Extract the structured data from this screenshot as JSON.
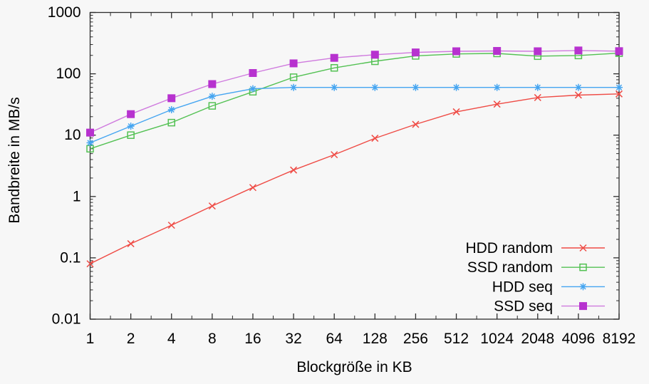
{
  "page": {
    "background": "#f7f7f7",
    "axis_color": "#2d2d2d",
    "text_color": "#000000"
  },
  "chart_data": {
    "type": "line",
    "title": "",
    "xlabel": "Blockgröße in KB",
    "ylabel": "Bandbreite in MB/s",
    "x_scale": "log2",
    "y_scale": "log10",
    "xlim": [
      1,
      8192
    ],
    "ylim": [
      0.01,
      1000
    ],
    "grid": false,
    "legend_position": "inside-bottom-right",
    "categories": [
      1,
      2,
      4,
      8,
      16,
      32,
      64,
      128,
      256,
      512,
      1024,
      2048,
      4096,
      8192
    ],
    "x_tick_labels": [
      "1",
      "2",
      "4",
      "8",
      "16",
      "32",
      "64",
      "128",
      "256",
      "512",
      "1024",
      "2048",
      "4096",
      "8192"
    ],
    "y_ticks": [
      0.01,
      0.1,
      1,
      10,
      100,
      1000
    ],
    "y_tick_labels": [
      "0.01",
      "0.1",
      "1",
      "10",
      "100",
      "1000"
    ],
    "series": [
      {
        "name": "HDD random",
        "color": "#ef4b45",
        "marker": "x",
        "values": [
          0.08,
          0.17,
          0.34,
          0.7,
          1.4,
          2.7,
          4.8,
          8.9,
          15,
          24,
          32,
          41,
          45,
          47
        ]
      },
      {
        "name": "SSD random",
        "color": "#53c153",
        "marker": "open-square",
        "values": [
          6,
          10,
          16,
          30,
          51,
          88,
          125,
          160,
          196,
          211,
          215,
          194,
          199,
          217
        ]
      },
      {
        "name": "HDD seq",
        "color": "#45a5f1",
        "marker": "asterisk",
        "values": [
          7.5,
          14,
          26,
          43,
          57,
          60,
          60,
          60,
          60,
          60,
          60,
          60,
          60,
          60
        ]
      },
      {
        "name": "SSD seq",
        "color": "#cf7ade",
        "marker_color": "#b732cf",
        "marker": "filled-square",
        "values": [
          11,
          22,
          40,
          68,
          103,
          148,
          182,
          205,
          223,
          233,
          236,
          233,
          240,
          234
        ]
      }
    ]
  }
}
